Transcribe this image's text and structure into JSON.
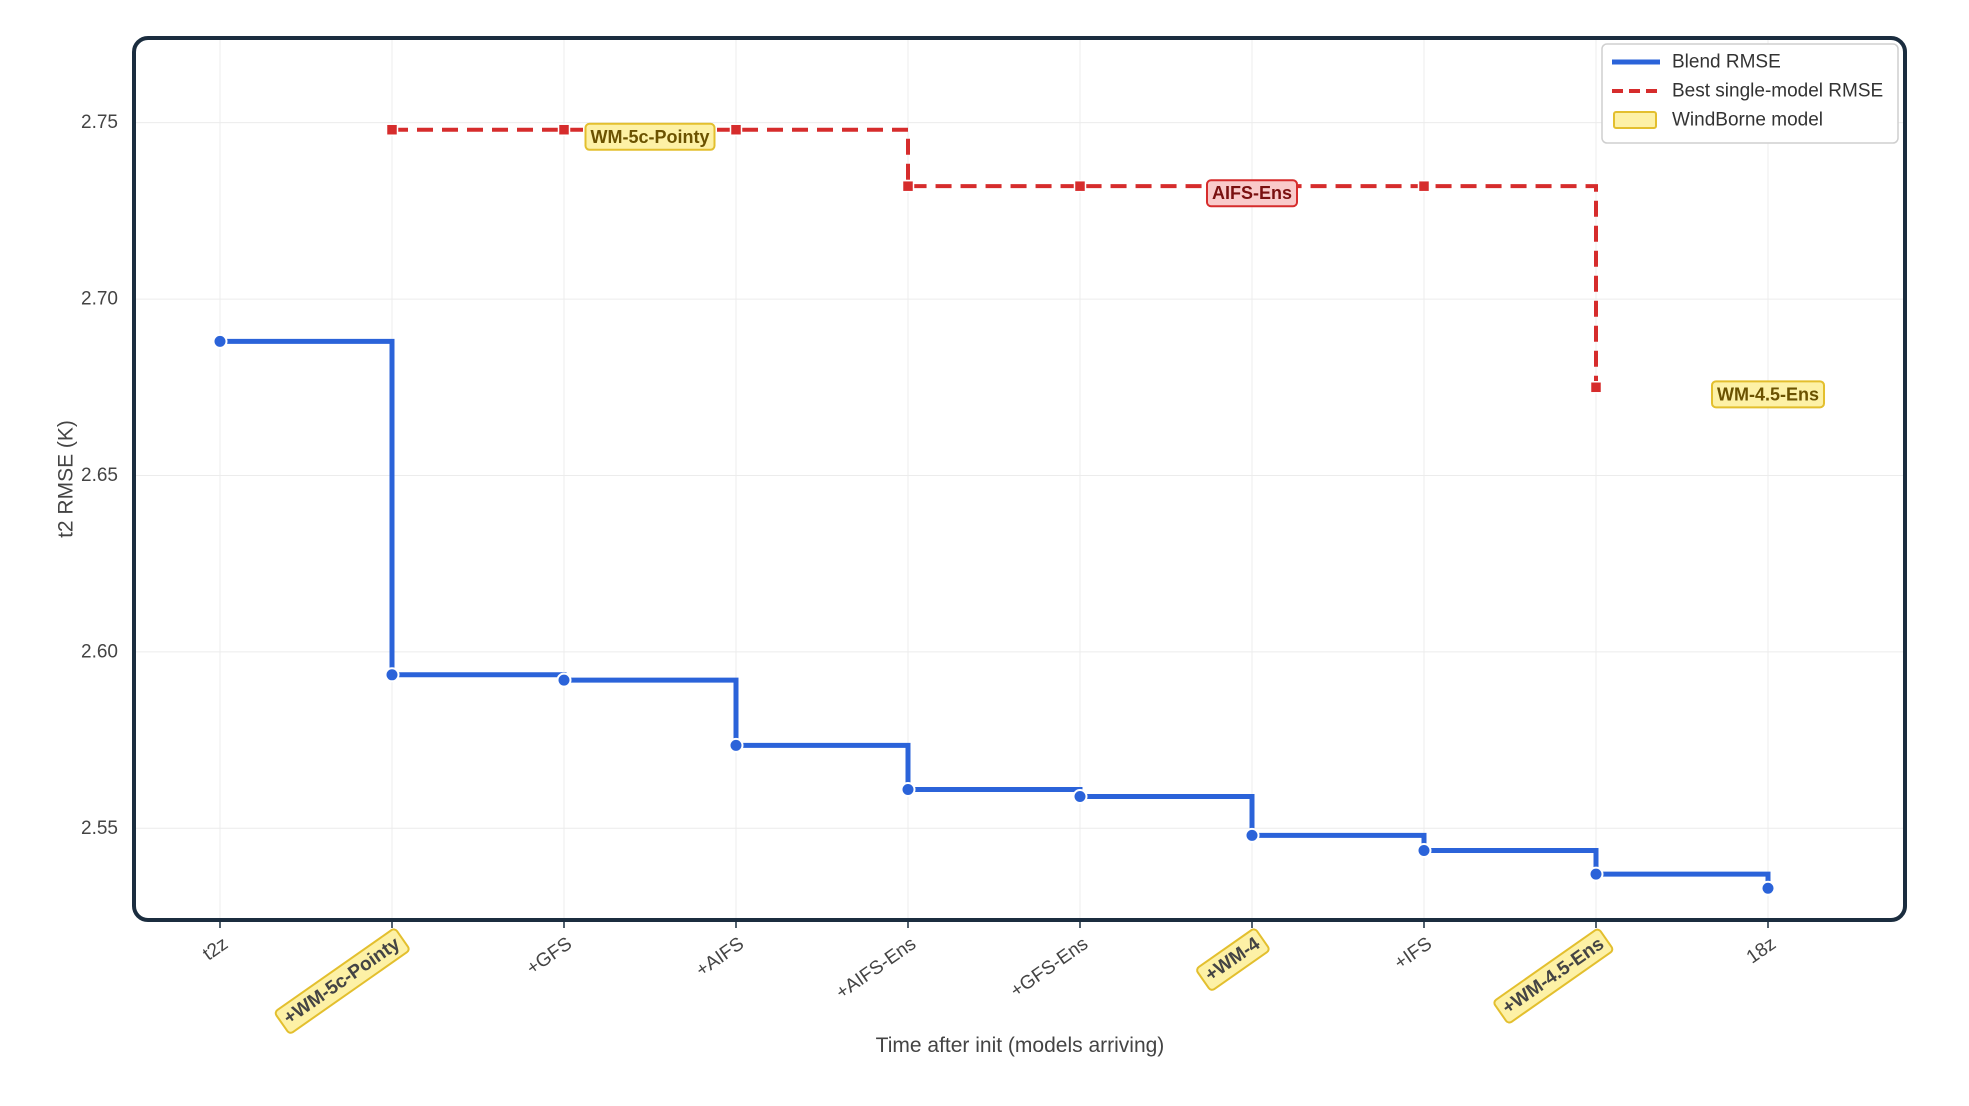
{
  "chart_data": {
    "type": "line",
    "x_categories": [
      "t2z",
      "+WM-5c-Pointy",
      "+GFS",
      "+AIFS",
      "+AIFS-Ens",
      "+GFS-Ens",
      "+WM-4",
      "+IFS",
      "+WM-4.5-Ens",
      "18z"
    ],
    "windborne_categories": [
      "+WM-5c-Pointy",
      "+WM-4",
      "+WM-4.5-Ens"
    ],
    "xlabel": "Time after init (models arriving)",
    "ylabel": "t2 RMSE (K)",
    "ylim": [
      2.524,
      2.774
    ],
    "yticks": [
      2.55,
      2.6,
      2.65,
      2.7,
      2.75
    ],
    "ytick_labels": [
      "2.55",
      "2.60",
      "2.65",
      "2.70",
      "2.75"
    ],
    "grid": true,
    "legend_position": "top-right",
    "series": [
      {
        "name": "Blend RMSE",
        "style": "solid step",
        "color": "#2b63d9",
        "x_start": 0,
        "values": [
          2.688,
          2.5935,
          2.592,
          2.5735,
          2.561,
          2.559,
          2.548,
          2.5437,
          2.537,
          2.533
        ]
      },
      {
        "name": "Best single-model RMSE",
        "style": "dashed step",
        "color": "#d62c2c",
        "x_start": 1,
        "values": [
          2.748,
          2.748,
          2.748,
          2.732,
          2.732,
          2.732,
          2.732,
          2.675
        ]
      }
    ],
    "annotations": [
      {
        "text": "WM-5c-Pointy",
        "kind": "windborne",
        "x": 2.5,
        "y": 2.746
      },
      {
        "text": "AIFS-Ens",
        "kind": "other",
        "x": 6.0,
        "y": 2.73
      },
      {
        "text": "WM-4.5-Ens",
        "kind": "windborne",
        "x": 9.0,
        "y": 2.673
      }
    ],
    "legend": [
      {
        "label": "Blend RMSE",
        "kind": "line"
      },
      {
        "label": "Best single-model RMSE",
        "kind": "dashed"
      },
      {
        "label": "WindBorne model",
        "kind": "patch"
      }
    ],
    "colors": {
      "blend": "#2b63d9",
      "best": "#d62c2c",
      "windborne_fill": "#fdf1a6",
      "windborne_edge": "#e3bf2e",
      "windborne_text": "#6b5200",
      "other_fill": "#f9caca",
      "other_edge": "#d62c2c",
      "other_text": "#7a1010",
      "frame": "#1b2d3f",
      "grid": "#ececec"
    }
  }
}
